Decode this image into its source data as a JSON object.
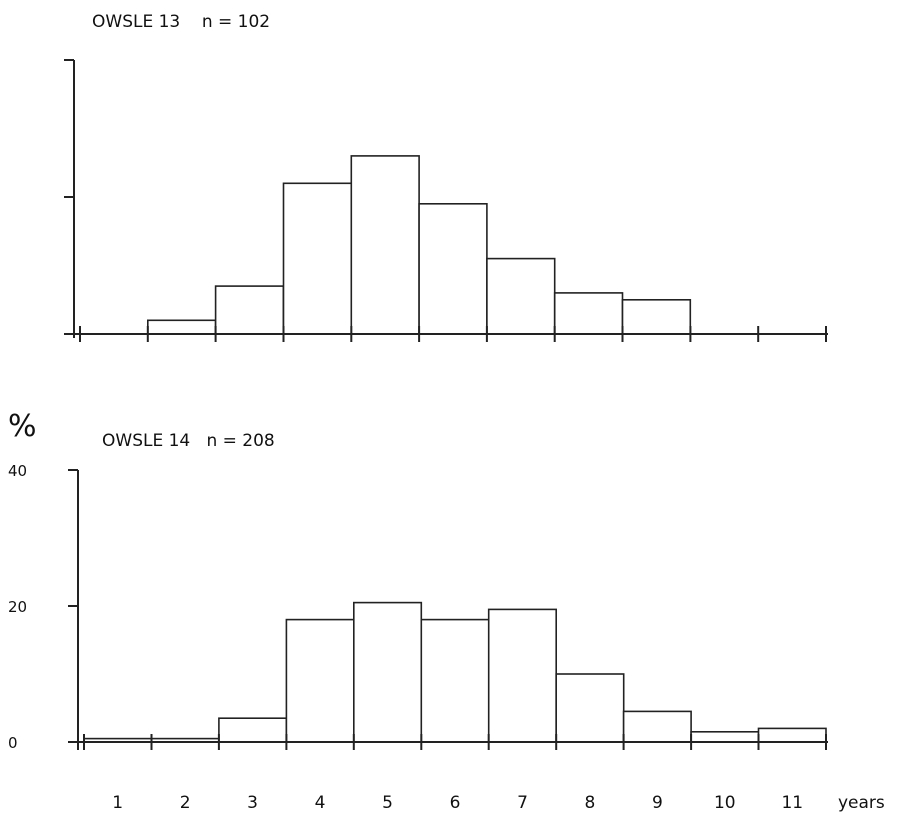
{
  "chart_data": [
    {
      "type": "bar",
      "title": "OWSLE 13    n = 102",
      "categories": [
        "1",
        "2",
        "3",
        "4",
        "5",
        "6",
        "7",
        "8",
        "9",
        "10",
        "11"
      ],
      "values": [
        0,
        2,
        7,
        22,
        26,
        19,
        11,
        6,
        5,
        0,
        0
      ],
      "ylim": [
        0,
        40
      ],
      "yticks": [
        0,
        20,
        40
      ],
      "ytick_labels_shown": false,
      "grid": false,
      "legend": "none"
    },
    {
      "type": "bar",
      "title": "OWSLE 14   n = 208",
      "ylabel": "%",
      "xlabel": "years",
      "categories": [
        "1",
        "2",
        "3",
        "4",
        "5",
        "6",
        "7",
        "8",
        "9",
        "10",
        "11"
      ],
      "values": [
        0.5,
        0.5,
        3.5,
        18,
        20.5,
        18,
        19.5,
        10,
        4.5,
        1.5,
        2
      ],
      "ylim": [
        0,
        40
      ],
      "yticks": [
        0,
        20,
        40
      ],
      "ytick_labels": [
        "0",
        "20",
        "40"
      ],
      "grid": false,
      "legend": "none"
    }
  ]
}
